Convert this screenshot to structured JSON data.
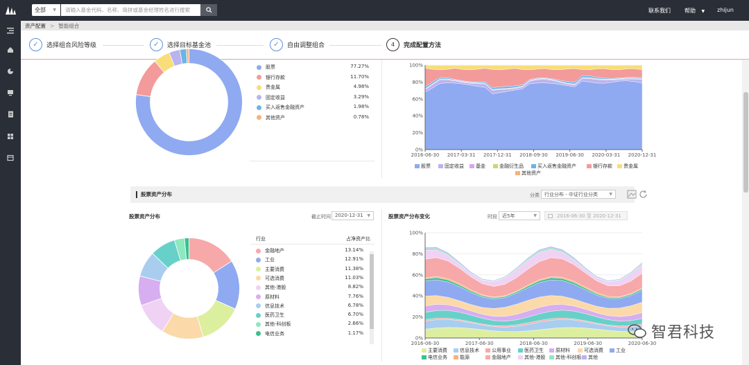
{
  "topbar": {
    "search_select": "全部",
    "search_placeholder": "请输入基金代码、名称、简拼或基金经理姓名进行搜索",
    "contact": "联系我们",
    "help": "帮助",
    "user": "zhijun"
  },
  "breadcrumb": {
    "root": "资产配置",
    "current": "智能组合"
  },
  "steps": [
    {
      "label": "选择组合风险等级",
      "state": "done"
    },
    {
      "label": "选择目标基金池",
      "state": "done"
    },
    {
      "label": "自由调整组合",
      "state": "done"
    },
    {
      "label": "完成配置方法",
      "state": "active",
      "num": "4"
    }
  ],
  "asset_alloc": {
    "legend": [
      {
        "name": "股票",
        "value": "77.27%",
        "color": "#8faaf0"
      },
      {
        "name": "银行存款",
        "value": "11.70%",
        "color": "#f39a9a"
      },
      {
        "name": "贵金属",
        "value": "4.98%",
        "color": "#f8dd78"
      },
      {
        "name": "固定收益",
        "value": "3.29%",
        "color": "#b9b3ee"
      },
      {
        "name": "买入返售金融资产",
        "value": "1.98%",
        "color": "#6db3e8"
      },
      {
        "name": "其他资产",
        "value": "0.78%",
        "color": "#f6b27a"
      }
    ],
    "pie_values": [
      77.27,
      11.7,
      4.98,
      3.29,
      1.98,
      0.78
    ],
    "area": {
      "y_ticks": [
        "100%",
        "80%",
        "60%",
        "40%",
        "20%",
        "0%"
      ],
      "x_ticks": [
        "2016-06-30",
        "2017-03-31",
        "2017-12-31",
        "2018-09-30",
        "2019-06-30",
        "2020-03-31",
        "2020-12-31"
      ],
      "legend": [
        {
          "name": "股票",
          "color": "#8faaf0"
        },
        {
          "name": "固定收益",
          "color": "#b9b3ee"
        },
        {
          "name": "基金",
          "color": "#d3a7f0"
        },
        {
          "name": "金融衍生品",
          "color": "#c8d873"
        },
        {
          "name": "买入返售金融资产",
          "color": "#6db3e8"
        },
        {
          "name": "银行存款",
          "color": "#f39a9a"
        },
        {
          "name": "贵金属",
          "color": "#f8dd78"
        },
        {
          "name": "其他资产",
          "color": "#f6b27a"
        }
      ]
    }
  },
  "stock_section": {
    "title": "股票资产分布",
    "dist_label": "分类",
    "dist_value": "行业分布 - 中证行业分类",
    "left_title": "股票资产分布",
    "date_label": "截止时间",
    "date_value": "2020-12-31",
    "col_industry": "行业",
    "col_ratio": "占净资产比",
    "rows": [
      {
        "name": "金融地产",
        "value": "13.14%",
        "color": "#f7a8a8"
      },
      {
        "name": "工业",
        "value": "12.91%",
        "color": "#8faaf0"
      },
      {
        "name": "主要消费",
        "value": "11.38%",
        "color": "#dcef9f"
      },
      {
        "name": "可选消费",
        "value": "11.03%",
        "color": "#fbd9a8"
      },
      {
        "name": "其他-港股",
        "value": "8.82%",
        "color": "#f0d2f5"
      },
      {
        "name": "原材料",
        "value": "7.76%",
        "color": "#d7aef0"
      },
      {
        "name": "信息技术",
        "value": "6.78%",
        "color": "#a9cdef"
      },
      {
        "name": "医药卫生",
        "value": "6.70%",
        "color": "#67d1c9"
      },
      {
        "name": "其他-科创板",
        "value": "2.66%",
        "color": "#8ee8c0"
      },
      {
        "name": "电信业务",
        "value": "1.17%",
        "color": "#3bbf8f"
      }
    ],
    "pie_values": [
      13.14,
      12.91,
      11.38,
      11.03,
      8.82,
      7.76,
      6.78,
      6.7,
      2.66,
      1.17
    ],
    "right_title": "股票资产分布变化",
    "period_label": "时段",
    "period_value": "近5年",
    "range_start": "2016-06-30",
    "range_to": "至",
    "range_end": "2020-12-31",
    "y_ticks": [
      "100%",
      "80%",
      "60%",
      "40%",
      "20%",
      "0%"
    ],
    "x_ticks": [
      "2016-06-30",
      "2017-06-30",
      "2018-06-30",
      "2019-06-30",
      "2020-06-30"
    ],
    "legend": [
      {
        "name": "主要消费",
        "color": "#dcef9f"
      },
      {
        "name": "信息技术",
        "color": "#a9cdef"
      },
      {
        "name": "公用事业",
        "color": "#f7a8a8"
      },
      {
        "name": "医药卫生",
        "color": "#67d1c9"
      },
      {
        "name": "原材料",
        "color": "#d7aef0"
      },
      {
        "name": "可选消费",
        "color": "#fbd9a8"
      },
      {
        "name": "工业",
        "color": "#8faaf0"
      },
      {
        "name": "电信业务",
        "color": "#3bbf8f"
      },
      {
        "name": "能源",
        "color": "#f6b27a"
      },
      {
        "name": "金融地产",
        "color": "#f7a8a8"
      },
      {
        "name": "其他-港股",
        "color": "#f0d2f5"
      },
      {
        "name": "其他-科创板",
        "color": "#8ee8c0"
      },
      {
        "name": "其他",
        "color": "#b9b3ee"
      }
    ]
  },
  "watermark": "智君科技"
}
